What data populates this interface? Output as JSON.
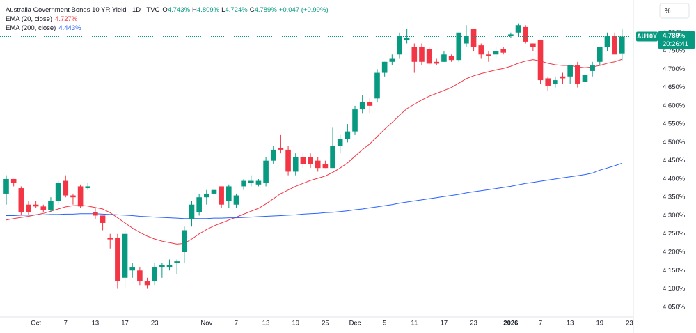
{
  "chart_data": {
    "type": "candlestick",
    "title": "Australia Government Bonds 10 YR Yield · 1D · TVC",
    "ohlc_header": [
      {
        "label": "O",
        "text": "4.743%"
      },
      {
        "label": "H",
        "text": "4.809%"
      },
      {
        "label": "L",
        "text": "4.724%"
      },
      {
        "label": "C",
        "text": "4.789%"
      }
    ],
    "change": "+0.047 (+0.99%)",
    "symbol": "AU10Y",
    "last_price_label": "4.789%",
    "countdown": "20:26:41",
    "scale_button": "%",
    "up_color": "#089981",
    "down_color": "#f23645",
    "grid": false,
    "categories": [
      null,
      null,
      null,
      null,
      "Oct",
      null,
      null,
      null,
      "7",
      null,
      null,
      null,
      "13",
      null,
      null,
      null,
      "17",
      null,
      null,
      null,
      "23",
      null,
      null,
      null,
      null,
      null,
      null,
      "Nov",
      null,
      null,
      null,
      "7",
      null,
      null,
      null,
      "13",
      null,
      null,
      null,
      "19",
      null,
      null,
      null,
      "25",
      null,
      null,
      null,
      "Dec",
      null,
      null,
      null,
      "5",
      null,
      null,
      null,
      "11",
      null,
      null,
      null,
      "17",
      null,
      null,
      null,
      "23",
      null,
      null,
      null,
      null,
      "2026",
      null,
      null,
      null,
      "7",
      null,
      null,
      null,
      "13",
      null,
      null,
      null,
      "19",
      null,
      null,
      null,
      "23"
    ],
    "open": [
      4.36,
      4.4,
      4.375,
      4.33,
      4.33,
      4.325,
      4.315,
      4.34,
      4.395,
      4.355,
      4.38,
      4.375,
      4.31,
      4.3,
      4.24,
      4.24,
      4.13,
      4.15,
      4.15,
      4.12,
      4.12,
      4.16,
      4.16,
      4.17,
      4.2,
      4.29,
      4.31,
      4.35,
      4.36,
      4.38,
      4.34,
      4.33,
      4.38,
      4.39,
      4.385,
      4.39,
      4.45,
      4.485,
      4.48,
      4.42,
      4.46,
      4.46,
      4.45,
      4.44,
      4.43,
      4.49,
      4.51,
      4.53,
      4.59,
      4.61,
      4.62,
      4.69,
      4.72,
      4.74,
      4.78,
      4.76,
      4.76,
      4.755,
      4.72,
      4.72,
      4.735,
      4.725,
      4.77,
      4.81,
      4.765,
      4.74,
      4.74,
      4.755,
      4.79,
      4.8,
      4.815,
      4.77,
      4.78,
      4.675,
      4.66,
      4.68,
      4.68,
      4.71,
      4.665,
      4.695,
      4.72,
      4.76,
      4.79,
      4.743,
      null
    ],
    "high": [
      4.41,
      4.4,
      4.38,
      4.34,
      4.34,
      4.33,
      4.35,
      4.395,
      4.41,
      4.36,
      4.385,
      4.39,
      4.32,
      4.3,
      4.25,
      4.25,
      4.26,
      4.17,
      4.16,
      4.13,
      4.17,
      4.17,
      4.18,
      4.18,
      4.27,
      4.34,
      4.36,
      4.37,
      4.37,
      4.38,
      4.385,
      4.36,
      4.4,
      4.41,
      4.4,
      4.46,
      4.49,
      4.52,
      4.49,
      4.47,
      4.47,
      4.47,
      4.46,
      4.45,
      4.54,
      4.52,
      4.55,
      4.6,
      4.63,
      4.62,
      4.7,
      4.72,
      4.74,
      4.8,
      4.81,
      4.77,
      4.77,
      4.76,
      4.73,
      4.75,
      4.74,
      4.8,
      4.82,
      4.81,
      4.77,
      4.75,
      4.76,
      4.76,
      4.8,
      4.825,
      4.82,
      4.77,
      4.78,
      4.68,
      4.68,
      4.69,
      4.71,
      4.72,
      4.69,
      4.72,
      4.76,
      4.8,
      4.8,
      4.809,
      null
    ],
    "low": [
      4.33,
      4.38,
      4.3,
      4.3,
      4.32,
      4.31,
      4.31,
      4.33,
      4.35,
      4.33,
      4.32,
      4.37,
      4.29,
      4.26,
      4.21,
      4.1,
      4.1,
      4.13,
      4.11,
      4.1,
      4.11,
      4.13,
      4.15,
      4.14,
      4.17,
      4.27,
      4.3,
      4.33,
      4.33,
      4.32,
      4.32,
      4.32,
      4.37,
      4.38,
      4.38,
      4.38,
      4.44,
      4.47,
      4.41,
      4.41,
      4.43,
      4.43,
      4.42,
      4.43,
      4.43,
      4.47,
      4.5,
      4.52,
      4.58,
      4.58,
      4.61,
      4.68,
      4.71,
      4.73,
      4.77,
      4.69,
      4.71,
      4.71,
      4.71,
      4.72,
      4.72,
      4.72,
      4.76,
      4.75,
      4.73,
      4.72,
      4.73,
      4.74,
      4.785,
      4.79,
      4.77,
      4.75,
      4.66,
      4.64,
      4.65,
      4.66,
      4.66,
      4.65,
      4.65,
      4.68,
      4.71,
      4.75,
      4.74,
      4.724,
      null
    ],
    "close": [
      4.4,
      4.39,
      4.31,
      4.31,
      4.325,
      4.315,
      4.34,
      4.39,
      4.355,
      4.35,
      4.325,
      4.38,
      4.3,
      4.28,
      4.235,
      4.12,
      4.25,
      4.16,
      4.12,
      4.11,
      4.16,
      4.165,
      4.165,
      4.175,
      4.26,
      4.33,
      4.35,
      4.36,
      4.37,
      4.33,
      4.38,
      4.355,
      4.395,
      4.395,
      4.395,
      4.45,
      4.48,
      4.48,
      4.42,
      4.46,
      4.44,
      4.44,
      4.43,
      4.43,
      4.49,
      4.51,
      4.53,
      4.59,
      4.61,
      4.6,
      4.69,
      4.72,
      4.73,
      4.79,
      4.785,
      4.72,
      4.72,
      4.715,
      4.715,
      4.74,
      4.725,
      4.8,
      4.79,
      4.76,
      4.74,
      4.735,
      4.75,
      4.745,
      4.795,
      4.82,
      4.775,
      4.76,
      4.67,
      4.655,
      4.67,
      4.675,
      4.71,
      4.66,
      4.685,
      4.71,
      4.76,
      4.79,
      4.74,
      4.789,
      null
    ],
    "series": [
      {
        "name": "EMA (20, close)",
        "value_label": "4.727%",
        "color": "#f23645",
        "values": [
          4.288,
          4.292,
          4.295,
          4.298,
          4.302,
          4.306,
          4.312,
          4.318,
          4.324,
          4.327,
          4.328,
          4.326,
          4.322,
          4.318,
          4.308,
          4.294,
          4.28,
          4.266,
          4.254,
          4.244,
          4.236,
          4.23,
          4.226,
          4.222,
          4.224,
          4.236,
          4.25,
          4.262,
          4.272,
          4.28,
          4.288,
          4.296,
          4.304,
          4.312,
          4.32,
          4.332,
          4.346,
          4.36,
          4.37,
          4.38,
          4.388,
          4.396,
          4.402,
          4.408,
          4.418,
          4.43,
          4.444,
          4.462,
          4.48,
          4.496,
          4.516,
          4.536,
          4.554,
          4.574,
          4.592,
          4.604,
          4.616,
          4.626,
          4.634,
          4.642,
          4.65,
          4.662,
          4.674,
          4.682,
          4.688,
          4.693,
          4.698,
          4.702,
          4.708,
          4.716,
          4.722,
          4.726,
          4.722,
          4.716,
          4.712,
          4.71,
          4.71,
          4.706,
          4.704,
          4.706,
          4.71,
          4.716,
          4.72,
          4.727,
          null
        ]
      },
      {
        "name": "EMA (200, close)",
        "value_label": "4.443%",
        "color": "#2962ff",
        "values": [
          4.3,
          4.3,
          4.301,
          4.301,
          4.302,
          4.302,
          4.303,
          4.303,
          4.304,
          4.304,
          4.305,
          4.305,
          4.305,
          4.304,
          4.303,
          4.302,
          4.301,
          4.3,
          4.298,
          4.297,
          4.296,
          4.295,
          4.294,
          4.293,
          4.292,
          4.292,
          4.292,
          4.292,
          4.293,
          4.293,
          4.294,
          4.294,
          4.295,
          4.296,
          4.297,
          4.298,
          4.299,
          4.3,
          4.301,
          4.302,
          4.304,
          4.305,
          4.306,
          4.308,
          4.309,
          4.311,
          4.313,
          4.316,
          4.318,
          4.321,
          4.324,
          4.327,
          4.33,
          4.334,
          4.337,
          4.34,
          4.343,
          4.346,
          4.349,
          4.352,
          4.355,
          4.358,
          4.362,
          4.365,
          4.368,
          4.371,
          4.374,
          4.377,
          4.38,
          4.384,
          4.388,
          4.391,
          4.394,
          4.397,
          4.4,
          4.403,
          4.406,
          4.409,
          4.412,
          4.416,
          4.424,
          4.43,
          4.436,
          4.443,
          null
        ]
      }
    ],
    "ylim": [
      4.023,
      4.889
    ],
    "yticks": [
      {
        "value": 4.05,
        "label": "4.050%"
      },
      {
        "value": 4.1,
        "label": "4.100%"
      },
      {
        "value": 4.15,
        "label": "4.150%"
      },
      {
        "value": 4.2,
        "label": "4.200%"
      },
      {
        "value": 4.25,
        "label": "4.250%"
      },
      {
        "value": 4.3,
        "label": "4.300%"
      },
      {
        "value": 4.35,
        "label": "4.350%"
      },
      {
        "value": 4.4,
        "label": "4.400%"
      },
      {
        "value": 4.45,
        "label": "4.450%"
      },
      {
        "value": 4.5,
        "label": "4.500%"
      },
      {
        "value": 4.55,
        "label": "4.550%"
      },
      {
        "value": 4.6,
        "label": "4.600%"
      },
      {
        "value": 4.65,
        "label": "4.650%"
      },
      {
        "value": 4.7,
        "label": "4.700%"
      },
      {
        "value": 4.75,
        "label": "4.750%"
      },
      {
        "value": 4.8,
        "label": "4.800%"
      }
    ]
  }
}
